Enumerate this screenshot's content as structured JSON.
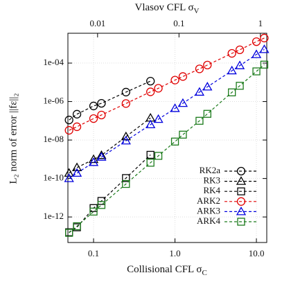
{
  "chart_data": {
    "type": "line",
    "xscale": "log",
    "yscale": "log",
    "xlabel": {
      "text": "Collisional CFL σ",
      "subscript": "C"
    },
    "x2label": {
      "text": "Vlasov CFL σ",
      "subscript": "V"
    },
    "ylabel": "L₂ norm of error ||fε||₂",
    "xlim": [
      0.0484,
      13.4
    ],
    "x2lim": [
      0.00432,
      1.197
    ],
    "ylim": [
      4.7e-14,
      0.00355
    ],
    "xticks": [
      0.1,
      {
        "value": 1,
        "label": "1.0"
      },
      {
        "value": 10,
        "label": "10.0"
      }
    ],
    "x2ticks": [
      0.01,
      0.1,
      1
    ],
    "yticks": [
      {
        "value": 1e-12,
        "label": "1e-12"
      },
      {
        "value": 1e-10,
        "label": "1e-10"
      },
      {
        "value": 1e-08,
        "label": "1e-08"
      },
      {
        "value": 1e-06,
        "label": "1e-06"
      },
      {
        "value": 0.0001,
        "label": "1e-04"
      }
    ],
    "grid": true,
    "legend": "lower right",
    "series": [
      {
        "name": "RK2a",
        "color": "#000000",
        "marker": "circle",
        "x": [
          0.05,
          0.0625,
          0.1,
          0.125,
          0.25,
          0.5
        ],
        "values": [
          1.1e-07,
          2.2e-07,
          5.9e-07,
          8.1e-07,
          3.1e-06,
          1.15e-05
        ]
      },
      {
        "name": "RK3",
        "color": "#000000",
        "marker": "triangle",
        "x": [
          0.05,
          0.0625,
          0.1,
          0.125,
          0.25,
          0.5
        ],
        "values": [
          1.9e-10,
          3.7e-10,
          9.8e-10,
          1.6e-09,
          1.5e-08,
          1.4e-07
        ]
      },
      {
        "name": "RK4",
        "color": "#000000",
        "marker": "square",
        "x": [
          0.05,
          0.0625,
          0.1,
          0.125,
          0.25,
          0.5
        ],
        "values": [
          1.6e-13,
          2.9e-13,
          2.9e-12,
          6.8e-12,
          1.05e-10,
          1.7e-09
        ]
      },
      {
        "name": "ARK2",
        "color": "#e00000",
        "marker": "circle",
        "x": [
          0.05,
          0.0625,
          0.1,
          0.125,
          0.25,
          0.5,
          0.625,
          1,
          1.25,
          2,
          2.5,
          5,
          6.25,
          10,
          12.5
        ],
        "values": [
          3.2e-08,
          4.9e-08,
          1.3e-07,
          2e-07,
          7.9e-07,
          3.2e-06,
          4.9e-06,
          1.3e-05,
          2e-05,
          5e-05,
          7.9e-05,
          0.00032,
          0.00049,
          0.0013,
          0.002
        ]
      },
      {
        "name": "ARK3",
        "color": "#0000dd",
        "marker": "triangle",
        "x": [
          0.05,
          0.0625,
          0.1,
          0.125,
          0.25,
          0.5,
          0.625,
          1,
          1.25,
          2,
          2.5,
          5,
          6.25,
          10,
          12.5
        ],
        "values": [
          1e-10,
          1.9e-10,
          6.9e-10,
          1.3e-09,
          9.1e-09,
          6.3e-08,
          1.2e-07,
          4.4e-07,
          8.1e-07,
          3.1e-06,
          5.8e-06,
          4e-05,
          7.4e-05,
          0.00028,
          0.00051
        ]
      },
      {
        "name": "ARK4",
        "color": "#1a7a1a",
        "marker": "square",
        "x": [
          0.05,
          0.0625,
          0.1,
          0.125,
          0.25,
          0.5,
          0.625,
          1,
          1.25,
          2,
          2.5,
          5,
          6.25,
          10,
          12.5
        ],
        "values": [
          1.5e-13,
          3.3e-13,
          1.9e-12,
          4.2e-12,
          5.2e-11,
          6.6e-10,
          1.5e-09,
          8.3e-09,
          1.9e-08,
          1e-07,
          2.3e-07,
          3e-06,
          6.6e-06,
          3.7e-05,
          8.3e-05
        ]
      }
    ]
  }
}
